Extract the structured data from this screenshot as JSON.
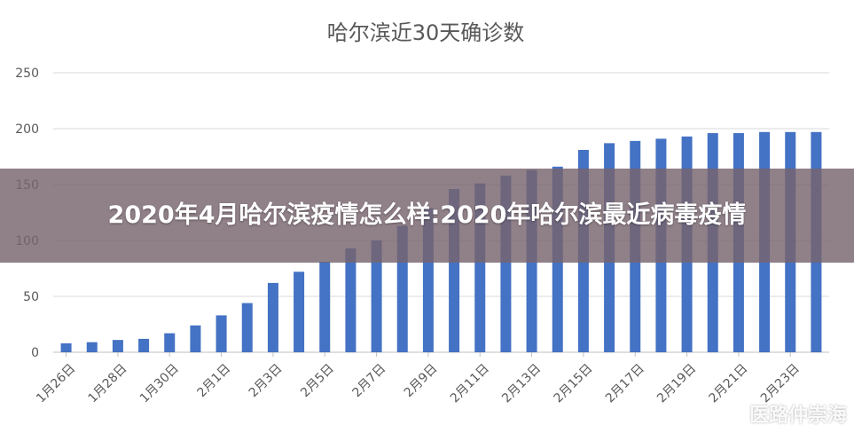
{
  "colors": {
    "bar": "#4472C4",
    "grid": "#d9d9d9",
    "axis_text": "#595959",
    "title": "#595959"
  },
  "chart_data": {
    "type": "bar",
    "title": "哈尔滨近30天确诊数",
    "xlabel": "",
    "ylabel": "",
    "ylim": [
      0,
      250
    ],
    "yticks": [
      0,
      50,
      100,
      150,
      200,
      250
    ],
    "grid": true,
    "categories": [
      "1月26日",
      "1月27日",
      "1月28日",
      "1月29日",
      "1月30日",
      "1月31日",
      "2月1日",
      "2月2日",
      "2月3日",
      "2月4日",
      "2月5日",
      "2月6日",
      "2月7日",
      "2月8日",
      "2月9日",
      "2月10日",
      "2月11日",
      "2月12日",
      "2月13日",
      "2月14日",
      "2月15日",
      "2月16日",
      "2月17日",
      "2月18日",
      "2月19日",
      "2月20日",
      "2月21日",
      "2月22日",
      "2月23日",
      "2月24日"
    ],
    "tick_labels": [
      "1月26日",
      "1月28日",
      "1月30日",
      "2月1日",
      "2月3日",
      "2月5日",
      "2月7日",
      "2月9日",
      "2月11日",
      "2月13日",
      "2月15日",
      "2月17日",
      "2月19日",
      "2月21日",
      "2月23日"
    ],
    "series": [
      {
        "values": [
          8,
          9,
          11,
          12,
          17,
          24,
          33,
          44,
          62,
          72,
          81,
          93,
          100,
          113,
          129,
          146,
          151,
          158,
          163,
          166,
          181,
          187,
          189,
          191,
          193,
          196,
          196,
          197,
          197,
          197
        ]
      }
    ]
  },
  "banner": {
    "text": "2020年4月哈尔滨疫情怎么样:2020年哈尔滨最近病毒疫情"
  },
  "watermark": {
    "icon": "weibo-icon",
    "text": "医路仲崇海"
  }
}
